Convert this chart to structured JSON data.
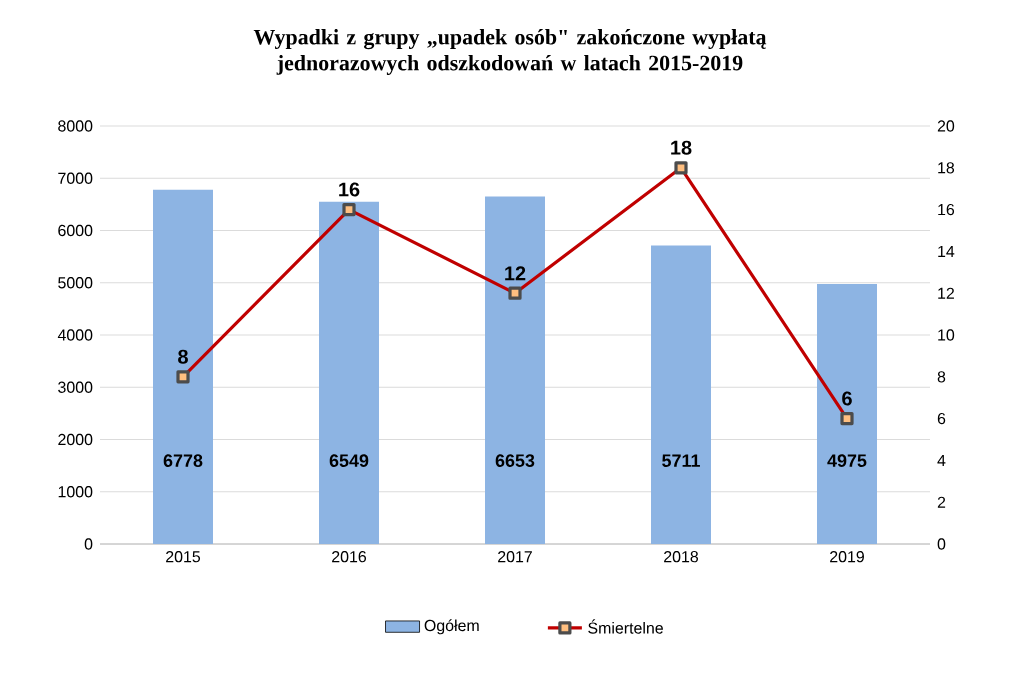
{
  "chart_data": {
    "type": "bar",
    "title": "Wypadki z grupy „upadek osób\" zakończone wypłatą jednorazowych odszkodowań w latach 2015-2019",
    "categories": [
      "2015",
      "2016",
      "2017",
      "2018",
      "2019"
    ],
    "series": [
      {
        "name": "Ogółem",
        "color": "#8db4e3",
        "values": [
          6778,
          6549,
          6653,
          5711,
          4975
        ]
      },
      {
        "name": "Śmiertelne",
        "type": "line",
        "axis": "y2",
        "color": "#c00000",
        "marker": "square",
        "values": [
          8,
          16,
          12,
          18,
          6
        ]
      }
    ],
    "ylim": [
      0,
      8000
    ],
    "yticks": [
      0,
      1000,
      2000,
      3000,
      4000,
      5000,
      6000,
      7000,
      8000
    ],
    "y2lim": [
      0,
      20
    ],
    "y2ticks": [
      0,
      2,
      4,
      6,
      8,
      10,
      12,
      14,
      16,
      18,
      20
    ],
    "grid": "y",
    "legend": "bottom",
    "data_labels": true
  }
}
